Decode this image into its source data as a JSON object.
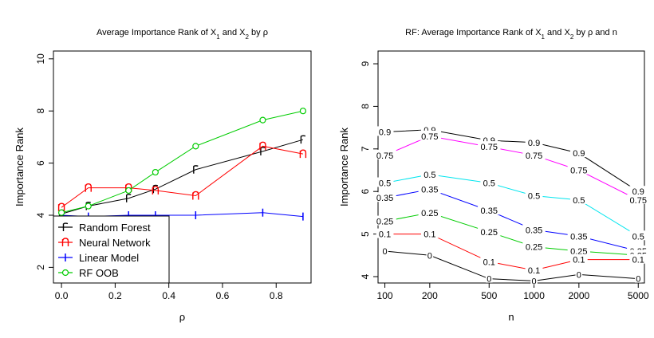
{
  "chart_data": [
    {
      "type": "line",
      "title": "Average Importance Rank of X1 and X2 by ρ",
      "title_parts": {
        "pre": "Average Importance Rank of X",
        "s1": "1",
        "mid": " and X",
        "s2": "2",
        "post": " by ρ"
      },
      "xlabel": "ρ",
      "ylabel": "Importance Rank",
      "xlim": [
        -0.03,
        0.93
      ],
      "ylim": [
        1.4,
        10.3
      ],
      "x_ticks": [
        0.0,
        0.2,
        0.4,
        0.6,
        0.8
      ],
      "x_tick_labels": [
        "0.0",
        "0.2",
        "0.4",
        "0.6",
        "0.8"
      ],
      "y_ticks": [
        2,
        4,
        6,
        8,
        10
      ],
      "y_tick_labels": [
        "2",
        "4",
        "6",
        "8",
        "10"
      ],
      "x": [
        0.0,
        0.1,
        0.25,
        0.35,
        0.5,
        0.75,
        0.9
      ],
      "series": [
        {
          "name": "Random Forest",
          "marker": "r",
          "color": "#000000",
          "values": [
            4.05,
            4.35,
            4.65,
            5.0,
            5.75,
            6.45,
            6.9
          ]
        },
        {
          "name": "Neural Network",
          "marker": "n",
          "color": "#ff0000",
          "values": [
            4.3,
            5.05,
            5.05,
            4.95,
            4.75,
            6.65,
            6.35
          ]
        },
        {
          "name": "Linear Model",
          "marker": "l",
          "color": "#0000ff",
          "values": [
            4.0,
            3.95,
            4.0,
            4.0,
            4.0,
            4.1,
            3.95
          ]
        },
        {
          "name": "RF OOB",
          "marker": "o",
          "color": "#00cc00",
          "values": [
            4.1,
            4.35,
            4.95,
            5.65,
            6.65,
            7.65,
            8.0
          ]
        }
      ],
      "legend": {
        "placement": "bottom-left"
      },
      "grid": false
    },
    {
      "type": "line",
      "title": "RF: Average Importance Rank of X1 and X2 by ρ and n",
      "title_parts": {
        "pre": "RF: Average Importance Rank of X",
        "s1": "1",
        "mid": " and X",
        "s2": "2",
        "post": " by ρ and n"
      },
      "xlabel": "n",
      "ylabel": "Importance Rank",
      "x_scale": "log",
      "xlim": [
        90,
        5500
      ],
      "ylim": [
        3.85,
        9.3
      ],
      "x_ticks": [
        100,
        200,
        500,
        1000,
        2000,
        5000
      ],
      "x_tick_labels": [
        "100",
        "200",
        "500",
        "1000",
        "2000",
        "5000"
      ],
      "y_ticks": [
        4,
        5,
        6,
        7,
        8,
        9
      ],
      "y_tick_labels": [
        "4",
        "5",
        "6",
        "7",
        "8",
        "9"
      ],
      "x": [
        100,
        200,
        500,
        1000,
        2000,
        5000
      ],
      "series": [
        {
          "name": "0.9",
          "color": "#000000",
          "values": [
            7.4,
            7.45,
            7.2,
            7.15,
            6.9,
            6.0
          ]
        },
        {
          "name": "0.75",
          "color": "#ff00ff",
          "values": [
            6.85,
            7.3,
            7.05,
            6.85,
            6.5,
            5.8
          ]
        },
        {
          "name": "0.5",
          "color": "#00e5ee",
          "values": [
            6.2,
            6.4,
            6.2,
            5.9,
            5.8,
            4.95
          ]
        },
        {
          "name": "0.35",
          "color": "#0000ff",
          "values": [
            5.85,
            6.05,
            5.55,
            5.1,
            4.95,
            4.6
          ]
        },
        {
          "name": "0.25",
          "color": "#00cc00",
          "values": [
            5.3,
            5.5,
            5.05,
            4.7,
            4.6,
            4.5
          ]
        },
        {
          "name": "0.1",
          "color": "#ff0000",
          "values": [
            5.0,
            5.0,
            4.35,
            4.15,
            4.4,
            4.4
          ]
        },
        {
          "name": "0",
          "color": "#000000",
          "values": [
            4.6,
            4.5,
            3.95,
            3.9,
            4.05,
            3.95
          ]
        }
      ],
      "legend": null,
      "grid": false
    }
  ]
}
